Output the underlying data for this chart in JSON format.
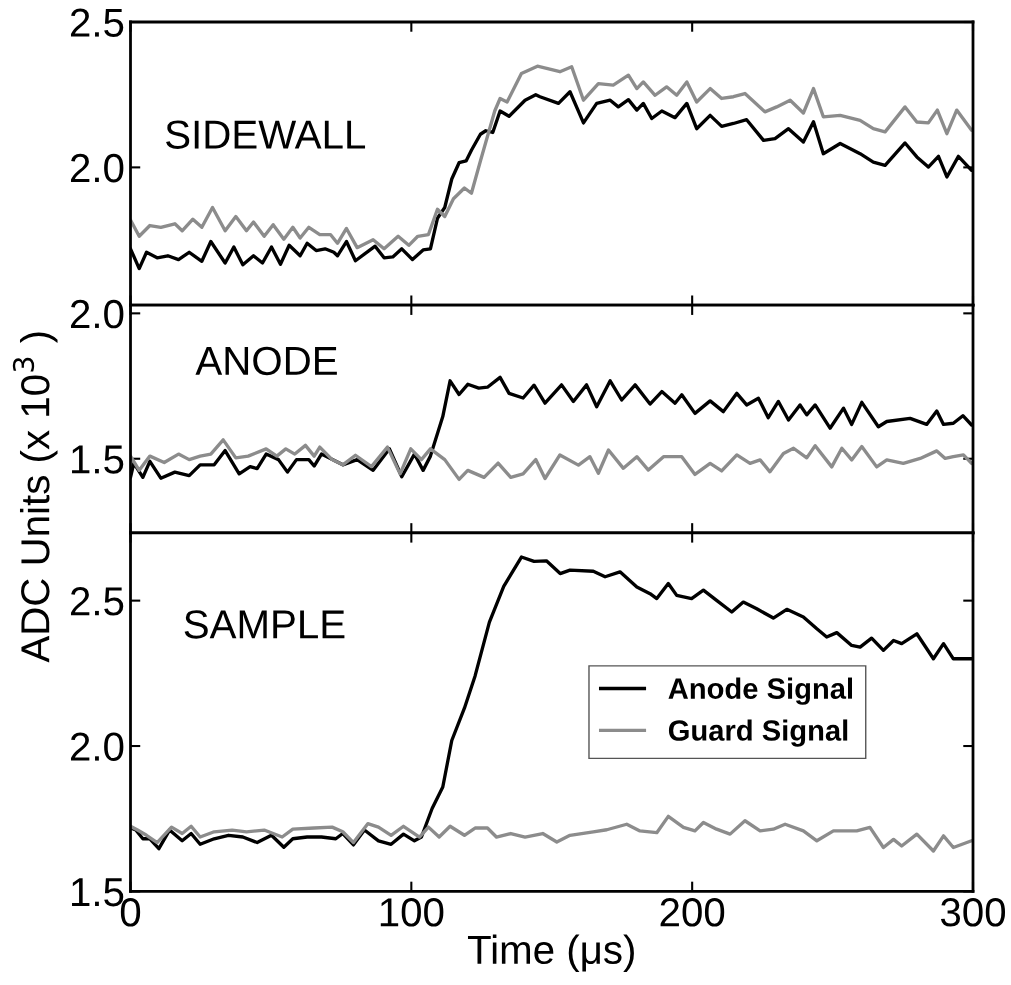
{
  "chart_data": [
    {
      "type": "line",
      "annotations": [
        "SIDEWALL"
      ],
      "xlim": [
        0,
        300
      ],
      "xticks": [
        0,
        100,
        200,
        300
      ],
      "ylim": [
        1.526,
        2.5
      ],
      "yticks": [
        {
          "value": 2,
          "label": "2.0"
        },
        {
          "value": 2.5,
          "label": "2.5"
        }
      ],
      "tick_labels": "y",
      "series": [
        {
          "color": "#000000",
          "x": [
            0,
            3.1,
            5.7,
            9.5,
            13.3,
            17.1,
            20.9,
            25.4,
            28.6,
            33.7,
            36.8,
            40.0,
            43.8,
            47.0,
            50.2,
            53.4,
            56.5,
            60.4,
            62.9,
            66.1,
            69.3,
            72.4,
            73.7,
            76.9,
            80.1,
            87.1,
            90.3,
            93.4,
            96.6,
            100.4,
            104.2,
            106.8,
            109.3,
            111.9,
            114.4,
            117.0,
            119.5,
            121.4,
            124.6,
            126.5,
            129.0,
            131.6,
            134.8,
            140.5,
            144.3,
            145.8,
            152.4,
            156.5,
            161.3,
            166.0,
            170.8,
            173.7,
            177.3,
            180.3,
            182.6,
            185.6,
            189.2,
            193.9,
            198.1,
            201.6,
            206.4,
            210.5,
            214.7,
            219.4,
            225.4,
            229.5,
            234.3,
            239.6,
            243.2,
            246.7,
            252.7,
            259.8,
            264.5,
            268.7,
            275.8,
            280.0,
            284.1,
            287.7,
            290.7,
            294.8,
            299.5
          ],
          "values": [
            1.72,
            1.652,
            1.708,
            1.689,
            1.696,
            1.683,
            1.708,
            1.677,
            1.745,
            1.671,
            1.726,
            1.665,
            1.696,
            1.671,
            1.726,
            1.667,
            1.732,
            1.696,
            1.739,
            1.714,
            1.72,
            1.708,
            1.696,
            1.745,
            1.679,
            1.729,
            1.689,
            1.692,
            1.72,
            1.683,
            1.716,
            1.72,
            1.825,
            1.862,
            1.96,
            2.016,
            2.022,
            2.059,
            2.114,
            2.126,
            2.12,
            2.194,
            2.176,
            2.231,
            2.25,
            2.243,
            2.22,
            2.26,
            2.153,
            2.22,
            2.231,
            2.208,
            2.233,
            2.197,
            2.22,
            2.168,
            2.194,
            2.171,
            2.22,
            2.133,
            2.179,
            2.141,
            2.151,
            2.164,
            2.093,
            2.099,
            2.133,
            2.087,
            2.157,
            2.047,
            2.082,
            2.047,
            2.018,
            2.007,
            2.084,
            2.036,
            2.001,
            2.038,
            1.967,
            2.038,
            1.99
          ]
        },
        {
          "color": "#8c8c8c",
          "x": [
            0,
            3.1,
            6.9,
            10.8,
            15.8,
            18.4,
            22.2,
            25.4,
            29.2,
            33.7,
            37.5,
            41.3,
            43.8,
            47.6,
            50.8,
            54.6,
            57.8,
            60.4,
            63.5,
            67.4,
            71.2,
            73.7,
            76.9,
            80.7,
            86.4,
            90.3,
            95.3,
            99.1,
            102.3,
            106.1,
            109.3,
            111.9,
            115.0,
            118.9,
            121.4,
            124.6,
            129.7,
            131.6,
            134.1,
            139.2,
            144.9,
            152.9,
            157.1,
            161.3,
            166.6,
            171.9,
            177.3,
            180.3,
            182.6,
            186.8,
            190.9,
            194.5,
            198.1,
            201.6,
            206.4,
            210.5,
            214.7,
            218.8,
            225.9,
            230.1,
            234.9,
            239.6,
            243.2,
            246.7,
            252.7,
            259.8,
            264.5,
            268.7,
            275.8,
            280.0,
            284.1,
            287.3,
            290.7,
            294.2,
            299.5
          ],
          "values": [
            1.819,
            1.763,
            1.8,
            1.794,
            1.806,
            1.782,
            1.822,
            1.794,
            1.862,
            1.782,
            1.831,
            1.782,
            1.812,
            1.763,
            1.803,
            1.753,
            1.794,
            1.757,
            1.794,
            1.769,
            1.769,
            1.739,
            1.79,
            1.724,
            1.751,
            1.72,
            1.763,
            1.732,
            1.763,
            1.769,
            1.856,
            1.831,
            1.892,
            1.929,
            1.911,
            2.022,
            2.194,
            2.237,
            2.225,
            2.323,
            2.348,
            2.329,
            2.346,
            2.231,
            2.288,
            2.283,
            2.317,
            2.271,
            2.294,
            2.248,
            2.277,
            2.248,
            2.294,
            2.225,
            2.271,
            2.237,
            2.243,
            2.254,
            2.191,
            2.208,
            2.231,
            2.187,
            2.271,
            2.174,
            2.179,
            2.162,
            2.133,
            2.122,
            2.208,
            2.156,
            2.153,
            2.197,
            2.116,
            2.197,
            2.128
          ]
        }
      ]
    },
    {
      "type": "line",
      "annotations": [
        "ANODE"
      ],
      "ylabel": "ADC Units (x 10$^{3}$ )",
      "xlim": [
        0,
        300
      ],
      "xticks": [
        0,
        100,
        200,
        300
      ],
      "ylim": [
        1.245,
        2.028
      ],
      "yticks": [
        {
          "value": 1.5,
          "label": "1.5"
        },
        {
          "value": 2,
          "label": "2.0"
        }
      ],
      "tick_labels": "y",
      "series": [
        {
          "color": "#000000",
          "x": [
            0,
            1.2,
            4.4,
            6.9,
            10.8,
            15.8,
            20.9,
            24.8,
            29.8,
            33.7,
            38.7,
            42.6,
            45.1,
            48.3,
            52.7,
            55.9,
            59.1,
            63.5,
            65.4,
            68.0,
            75.6,
            80.7,
            86.4,
            92.2,
            96.6,
            101.1,
            104.2,
            106.8,
            111.2,
            113.8,
            117.0,
            120.1,
            124.0,
            127.1,
            131.6,
            134.8,
            139.8,
            143.7,
            147.6,
            153.5,
            157.7,
            162.4,
            166.0,
            170.8,
            174.9,
            179.7,
            185.0,
            189.2,
            193.9,
            196.3,
            201.0,
            206.4,
            211.1,
            215.9,
            219.4,
            223.6,
            227.1,
            230.7,
            234.3,
            238.4,
            240.8,
            243.8,
            249.1,
            253.9,
            256.8,
            260.4,
            266.3,
            269.3,
            277.6,
            283.5,
            287.1,
            289.5,
            293.0,
            296.4,
            299.5
          ],
          "values": [
            1.436,
            1.485,
            1.436,
            1.491,
            1.433,
            1.454,
            1.442,
            1.479,
            1.479,
            1.528,
            1.448,
            1.473,
            1.466,
            1.516,
            1.497,
            1.454,
            1.497,
            1.497,
            1.475,
            1.516,
            1.479,
            1.497,
            1.46,
            1.534,
            1.438,
            1.516,
            1.46,
            1.509,
            1.645,
            1.768,
            1.721,
            1.756,
            1.743,
            1.746,
            1.78,
            1.725,
            1.709,
            1.753,
            1.691,
            1.754,
            1.697,
            1.754,
            1.679,
            1.768,
            1.702,
            1.754,
            1.688,
            1.731,
            1.691,
            1.72,
            1.656,
            1.699,
            1.662,
            1.725,
            1.685,
            1.708,
            1.641,
            1.697,
            1.633,
            1.685,
            1.651,
            1.685,
            1.605,
            1.674,
            1.618,
            1.694,
            1.61,
            1.628,
            1.639,
            1.618,
            1.664,
            1.618,
            1.622,
            1.648,
            1.616
          ]
        },
        {
          "color": "#8c8c8c",
          "x": [
            0,
            3.1,
            6.9,
            12.0,
            17.1,
            20.9,
            24.8,
            28.6,
            33.0,
            37.5,
            41.9,
            48.3,
            52.1,
            55.3,
            58.5,
            62.3,
            65.4,
            67.4,
            71.8,
            75.6,
            80.1,
            85.8,
            91.5,
            96.0,
            99.8,
            103.6,
            106.8,
            111.9,
            117.0,
            120.1,
            125.9,
            130.9,
            135.4,
            139.8,
            144.3,
            147.6,
            152.9,
            159.5,
            163.6,
            166.6,
            170.2,
            175.5,
            180.3,
            184.4,
            189.8,
            196.3,
            201.0,
            206.4,
            210.5,
            215.9,
            220.6,
            224.2,
            227.7,
            232.5,
            236.1,
            240.8,
            243.8,
            249.7,
            253.3,
            256.8,
            260.4,
            265.7,
            269.3,
            275.2,
            281.2,
            287.1,
            290.1,
            293.0,
            296.6,
            299.5
          ],
          "values": [
            1.509,
            1.46,
            1.509,
            1.487,
            1.516,
            1.497,
            1.509,
            1.516,
            1.565,
            1.503,
            1.509,
            1.534,
            1.509,
            1.534,
            1.516,
            1.546,
            1.509,
            1.54,
            1.497,
            1.479,
            1.512,
            1.473,
            1.54,
            1.448,
            1.534,
            1.497,
            1.534,
            1.497,
            1.429,
            1.46,
            1.436,
            1.485,
            1.436,
            1.448,
            1.497,
            1.432,
            1.513,
            1.478,
            1.507,
            1.45,
            1.53,
            1.467,
            1.507,
            1.461,
            1.507,
            1.507,
            1.446,
            1.484,
            1.458,
            1.513,
            1.484,
            1.496,
            1.455,
            1.518,
            1.536,
            1.503,
            1.545,
            1.472,
            1.536,
            1.496,
            1.542,
            1.472,
            1.496,
            1.484,
            1.501,
            1.527,
            1.501,
            1.507,
            1.513,
            1.484
          ]
        }
      ]
    },
    {
      "type": "line",
      "annotations": [
        "SAMPLE"
      ],
      "xlabel": "Time (μs)",
      "xlim": [
        0,
        300
      ],
      "xticks": [
        0,
        100,
        200,
        300
      ],
      "ylim": [
        1.5,
        2.733
      ],
      "yticks": [
        {
          "value": 1.5,
          "label": "1.5"
        },
        {
          "value": 2,
          "label": "2.0"
        },
        {
          "value": 2.5,
          "label": "2.5"
        }
      ],
      "legend": "right",
      "series": [
        {
          "name": "Anode Signal",
          "color": "#000000",
          "x": [
            0,
            1.9,
            4.4,
            6.9,
            10.1,
            13.9,
            18.4,
            21.6,
            24.8,
            29.8,
            34.9,
            40.0,
            45.1,
            50.2,
            54.6,
            57.8,
            62.9,
            68.0,
            73.1,
            75.6,
            79.4,
            83.3,
            88.3,
            92.8,
            97.2,
            101.1,
            103.6,
            107.4,
            111.2,
            114.4,
            118.9,
            122.7,
            127.8,
            132.9,
            139.2,
            143.7,
            148.1,
            153.0,
            156.5,
            164.8,
            169.0,
            174.3,
            180.3,
            185.0,
            187.4,
            191.5,
            194.5,
            199.8,
            204.0,
            208.7,
            214.1,
            218.2,
            223.0,
            228.9,
            233.7,
            239.6,
            244.4,
            247.9,
            251.5,
            256.8,
            259.8,
            263.9,
            268.1,
            271.7,
            274.6,
            280.0,
            285.9,
            289.5,
            293.0,
            299.5
          ],
          "values": [
            1.718,
            1.711,
            1.681,
            1.681,
            1.647,
            1.711,
            1.674,
            1.699,
            1.662,
            1.681,
            1.693,
            1.687,
            1.668,
            1.693,
            1.652,
            1.681,
            1.687,
            1.687,
            1.681,
            1.699,
            1.66,
            1.711,
            1.674,
            1.662,
            1.697,
            1.674,
            1.687,
            1.785,
            1.859,
            2.019,
            2.13,
            2.241,
            2.426,
            2.549,
            2.65,
            2.635,
            2.637,
            2.593,
            2.605,
            2.601,
            2.582,
            2.599,
            2.547,
            2.524,
            2.507,
            2.559,
            2.518,
            2.507,
            2.536,
            2.501,
            2.461,
            2.495,
            2.472,
            2.44,
            2.47,
            2.444,
            2.403,
            2.375,
            2.39,
            2.346,
            2.34,
            2.371,
            2.329,
            2.363,
            2.352,
            2.386,
            2.3,
            2.352,
            2.3,
            2.3
          ]
        },
        {
          "name": "Guard Signal",
          "color": "#8c8c8c",
          "x": [
            0,
            2.5,
            5.7,
            9.5,
            14.6,
            18.4,
            21.6,
            24.8,
            29.8,
            36.2,
            41.3,
            47.6,
            54.0,
            57.8,
            65.4,
            71.8,
            75.6,
            79.4,
            84.5,
            88.3,
            92.8,
            97.2,
            102.9,
            106.1,
            109.9,
            113.8,
            118.9,
            122.7,
            127.1,
            130.3,
            135.4,
            140.5,
            146.8,
            151.8,
            156.5,
            164.8,
            169.6,
            176.7,
            181.4,
            187.4,
            191.5,
            196.9,
            201.0,
            204.0,
            208.7,
            213.5,
            218.8,
            224.2,
            228.9,
            233.1,
            239.6,
            244.4,
            250.3,
            258.6,
            263.3,
            268.1,
            271.7,
            274.6,
            280.0,
            285.9,
            289.5,
            293.0,
            299.5
          ],
          "values": [
            1.724,
            1.711,
            1.693,
            1.668,
            1.721,
            1.699,
            1.724,
            1.687,
            1.705,
            1.711,
            1.705,
            1.711,
            1.687,
            1.714,
            1.718,
            1.721,
            1.705,
            1.668,
            1.733,
            1.721,
            1.693,
            1.724,
            1.687,
            1.721,
            1.687,
            1.724,
            1.693,
            1.718,
            1.718,
            1.687,
            1.699,
            1.687,
            1.699,
            1.67,
            1.693,
            1.705,
            1.712,
            1.731,
            1.708,
            1.702,
            1.758,
            1.72,
            1.708,
            1.737,
            1.714,
            1.697,
            1.743,
            1.708,
            1.714,
            1.731,
            1.708,
            1.674,
            1.708,
            1.708,
            1.72,
            1.651,
            1.679,
            1.656,
            1.697,
            1.639,
            1.691,
            1.651,
            1.674
          ]
        }
      ]
    }
  ]
}
